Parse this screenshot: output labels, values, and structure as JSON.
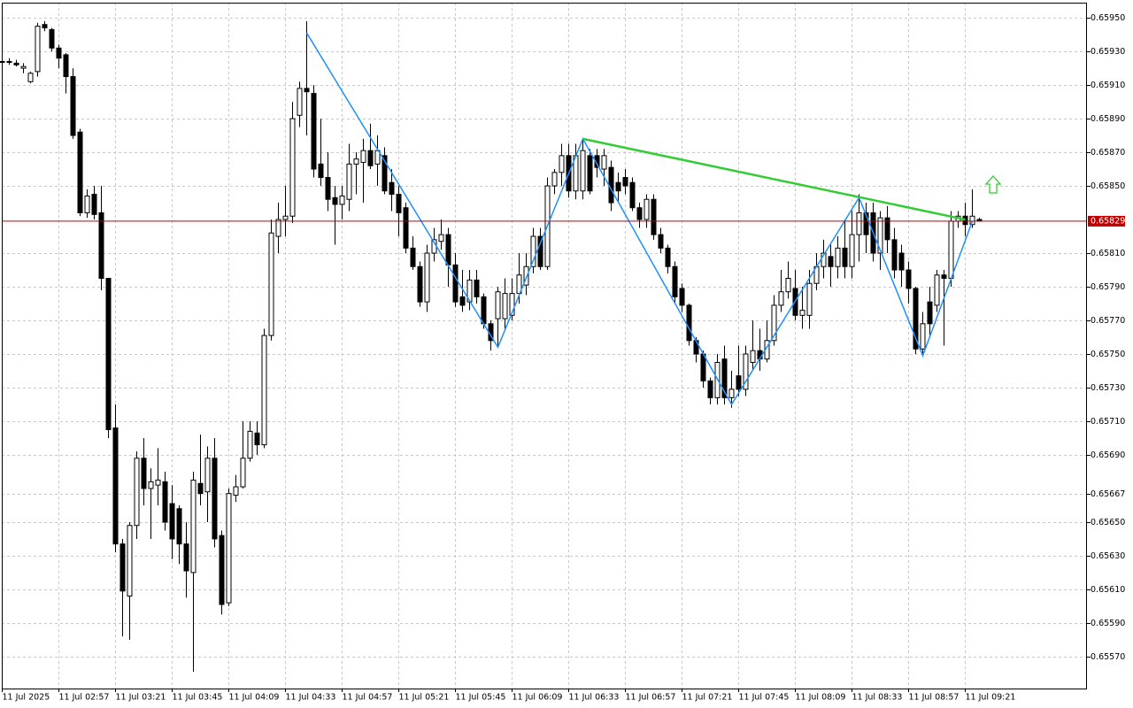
{
  "chart_data": {
    "type": "candlestick",
    "categories": [
      "11 Jul 2025",
      null,
      null,
      null,
      null,
      null,
      null,
      null,
      "11 Jul 02:57",
      null,
      null,
      null,
      null,
      null,
      null,
      null,
      "11 Jul 03:21",
      null,
      null,
      null,
      null,
      null,
      null,
      null,
      "11 Jul 03:45",
      null,
      null,
      null,
      null,
      null,
      null,
      null,
      "11 Jul 04:09",
      null,
      null,
      null,
      null,
      null,
      null,
      null,
      "11 Jul 04:33",
      null,
      null,
      null,
      null,
      null,
      null,
      null,
      "11 Jul 04:57",
      null,
      null,
      null,
      null,
      null,
      null,
      null,
      "11 Jul 05:21",
      null,
      null,
      null,
      null,
      null,
      null,
      null,
      "11 Jul 05:45",
      null,
      null,
      null,
      null,
      null,
      null,
      null,
      "11 Jul 06:09",
      null,
      null,
      null,
      null,
      null,
      null,
      null,
      "11 Jul 06:33",
      null,
      null,
      null,
      null,
      null,
      null,
      null,
      "11 Jul 06:57",
      null,
      null,
      null,
      null,
      null,
      null,
      null,
      "11 Jul 07:21",
      null,
      null,
      null,
      null,
      null,
      null,
      null,
      "11 Jul 07:45",
      null,
      null,
      null,
      null,
      null,
      null,
      null,
      "11 Jul 08:09",
      null,
      null,
      null,
      null,
      null,
      null,
      null,
      "11 Jul 08:33",
      null,
      null,
      null,
      null,
      null,
      null,
      null,
      "11 Jul 08:57",
      null,
      null,
      null,
      null,
      null,
      null,
      null,
      "11 Jul 09:21",
      null,
      null
    ],
    "open": [
      0.65924,
      0.65924,
      0.65923,
      0.6592,
      0.65912,
      0.65918,
      0.65946,
      0.65943,
      0.65932,
      0.65928,
      0.65915,
      0.65882,
      0.65834,
      0.65845,
      0.65834,
      0.65795,
      0.65706,
      0.65637,
      0.65606,
      0.65648,
      0.65688,
      0.6567,
      0.65672,
      0.65674,
      0.65661,
      0.65658,
      0.65637,
      0.6562,
      0.65673,
      0.65668,
      0.65688,
      0.65642,
      0.65602,
      0.65666,
      0.65671,
      0.65688,
      0.65703,
      0.65696,
      0.65761,
      0.6582,
      0.6583,
      0.65832,
      0.65892,
      0.65908,
      0.65905,
      0.65863,
      0.65855,
      0.65843,
      0.65839,
      0.65842,
      0.65863,
      0.65864,
      0.65871,
      0.65863,
      0.65868,
      0.65852,
      0.65845,
      0.65837,
      0.65813,
      0.65802,
      0.65781,
      0.6581,
      0.65817,
      0.65821,
      0.65803,
      0.65784,
      0.65781,
      0.65794,
      0.65784,
      0.65768,
      0.65771,
      0.65771,
      0.65773,
      0.65786,
      0.65791,
      0.65802,
      0.6582,
      0.65802,
      0.6585,
      0.65858,
      0.65868,
      0.65847,
      0.65847,
      0.65868,
      0.65868,
      0.6586,
      0.65861,
      0.65852,
      0.65855,
      0.65852,
      0.65837,
      0.6583,
      0.65842,
      0.65821,
      0.65813,
      0.65802,
      0.65789,
      0.65779,
      0.65758,
      0.6575,
      0.65734,
      0.65724,
      0.65747,
      0.65724,
      0.65737,
      0.65729,
      0.65745,
      0.65752,
      0.65747,
      0.65758,
      0.65779,
      0.65787,
      0.65789,
      0.65773,
      0.65773,
      0.65792,
      0.65802,
      0.65808,
      0.65802,
      0.65813,
      0.65802,
      0.65821,
      0.65834,
      0.65834,
      0.6581,
      0.65831,
      0.65818,
      0.6581,
      0.658,
      0.65789,
      0.65753,
      0.65781,
      0.65779,
      0.65797,
      0.65795,
      0.65829,
      0.65832,
      0.65827,
      0.6583
    ],
    "high": [
      0.65926,
      0.65926,
      0.65925,
      0.65923,
      0.65918,
      0.65947,
      0.65948,
      0.65944,
      0.65934,
      0.65929,
      0.6592,
      0.65884,
      0.65848,
      0.6585,
      0.6585,
      0.65795,
      0.6572,
      0.6564,
      0.6565,
      0.65692,
      0.657,
      0.65682,
      0.65694,
      0.6568,
      0.65672,
      0.6566,
      0.6565,
      0.6568,
      0.65702,
      0.65695,
      0.657,
      0.65645,
      0.6567,
      0.65678,
      0.6571,
      0.6571,
      0.6571,
      0.65765,
      0.6583,
      0.6584,
      0.6585,
      0.659,
      0.65912,
      0.65948,
      0.6591,
      0.6589,
      0.6587,
      0.6585,
      0.6585,
      0.65875,
      0.6587,
      0.65878,
      0.65887,
      0.6588,
      0.65873,
      0.6586,
      0.6585,
      0.6584,
      0.6582,
      0.65805,
      0.65815,
      0.65825,
      0.6583,
      0.65825,
      0.6581,
      0.658,
      0.658,
      0.658,
      0.65786,
      0.6577,
      0.6579,
      0.65795,
      0.65795,
      0.6581,
      0.6581,
      0.65825,
      0.65825,
      0.65855,
      0.6586,
      0.65875,
      0.65875,
      0.65875,
      0.65878,
      0.65872,
      0.65872,
      0.65872,
      0.65865,
      0.65858,
      0.6586,
      0.65855,
      0.6584,
      0.65845,
      0.65845,
      0.65825,
      0.65815,
      0.65805,
      0.65792,
      0.6578,
      0.6576,
      0.65752,
      0.65736,
      0.6575,
      0.65755,
      0.6574,
      0.65755,
      0.65755,
      0.6577,
      0.65765,
      0.6577,
      0.65785,
      0.658,
      0.65805,
      0.658,
      0.6579,
      0.658,
      0.6581,
      0.65818,
      0.65815,
      0.6582,
      0.6583,
      0.65835,
      0.65845,
      0.6584,
      0.6584,
      0.65835,
      0.65838,
      0.65825,
      0.65815,
      0.65805,
      0.6579,
      0.65775,
      0.6579,
      0.658,
      0.658,
      0.65835,
      0.65835,
      0.6584,
      0.65848,
      0.65831
    ],
    "low": [
      0.65922,
      0.65922,
      0.65921,
      0.65917,
      0.65911,
      0.65915,
      0.65942,
      0.6593,
      0.6592,
      0.65905,
      0.65878,
      0.65832,
      0.65831,
      0.6583,
      0.65788,
      0.657,
      0.65632,
      0.65582,
      0.6558,
      0.6564,
      0.6566,
      0.6564,
      0.6566,
      0.65645,
      0.65628,
      0.65625,
      0.65605,
      0.65561,
      0.6566,
      0.6565,
      0.65635,
      0.65595,
      0.656,
      0.65662,
      0.6567,
      0.65686,
      0.6569,
      0.65694,
      0.65758,
      0.6581,
      0.6582,
      0.65828,
      0.65885,
      0.6588,
      0.65855,
      0.6585,
      0.65835,
      0.65815,
      0.6583,
      0.65835,
      0.65845,
      0.6584,
      0.6586,
      0.6585,
      0.65845,
      0.65835,
      0.6582,
      0.6581,
      0.658,
      0.65778,
      0.65775,
      0.65805,
      0.65812,
      0.6579,
      0.65778,
      0.65775,
      0.65776,
      0.6578,
      0.65765,
      0.65752,
      0.65755,
      0.65765,
      0.6577,
      0.6578,
      0.65785,
      0.65798,
      0.658,
      0.658,
      0.65845,
      0.6585,
      0.65843,
      0.65842,
      0.65842,
      0.65845,
      0.65855,
      0.6585,
      0.65835,
      0.6584,
      0.65845,
      0.65835,
      0.65825,
      0.65825,
      0.65818,
      0.6581,
      0.65798,
      0.6578,
      0.65775,
      0.65755,
      0.65745,
      0.6573,
      0.6572,
      0.6572,
      0.6572,
      0.65718,
      0.65725,
      0.65725,
      0.6574,
      0.6574,
      0.65745,
      0.65755,
      0.65775,
      0.65783,
      0.6577,
      0.65765,
      0.65765,
      0.65788,
      0.65795,
      0.6579,
      0.65795,
      0.65795,
      0.65795,
      0.65805,
      0.6581,
      0.65805,
      0.658,
      0.6581,
      0.65795,
      0.6579,
      0.6578,
      0.6575,
      0.6575,
      0.6576,
      0.65775,
      0.65755,
      0.6579,
      0.65825,
      0.6582,
      0.65825,
      0.65829
    ],
    "close": [
      0.65924,
      0.65924,
      0.65922,
      0.65921,
      0.65917,
      0.65945,
      0.65944,
      0.65932,
      0.65926,
      0.65915,
      0.6588,
      0.65834,
      0.65844,
      0.65833,
      0.65795,
      0.65705,
      0.65637,
      0.65609,
      0.65648,
      0.65688,
      0.6567,
      0.65674,
      0.65675,
      0.6565,
      0.6564,
      0.65637,
      0.65621,
      0.65675,
      0.65667,
      0.65688,
      0.6564,
      0.65601,
      0.65667,
      0.65671,
      0.65688,
      0.65704,
      0.65696,
      0.65761,
      0.65822,
      0.6583,
      0.65832,
      0.6589,
      0.65908,
      0.65906,
      0.6586,
      0.65855,
      0.65842,
      0.65839,
      0.65844,
      0.65863,
      0.65866,
      0.65871,
      0.65862,
      0.65871,
      0.65847,
      0.65845,
      0.65834,
      0.65813,
      0.65802,
      0.65781,
      0.6581,
      0.65818,
      0.65821,
      0.65803,
      0.65781,
      0.65779,
      0.65794,
      0.65784,
      0.65768,
      0.65758,
      0.65787,
      0.65786,
      0.65786,
      0.65797,
      0.65802,
      0.6582,
      0.65802,
      0.6585,
      0.65858,
      0.65868,
      0.65847,
      0.65868,
      0.65871,
      0.65847,
      0.65861,
      0.65868,
      0.6584,
      0.65847,
      0.6585,
      0.65837,
      0.6583,
      0.65842,
      0.65821,
      0.65813,
      0.65802,
      0.65784,
      0.65779,
      0.65758,
      0.6575,
      0.65734,
      0.65724,
      0.65745,
      0.65724,
      0.65729,
      0.65729,
      0.6575,
      0.65752,
      0.65747,
      0.65758,
      0.65779,
      0.65787,
      0.65795,
      0.65773,
      0.65776,
      0.65792,
      0.65802,
      0.6581,
      0.65802,
      0.65813,
      0.65802,
      0.65821,
      0.65834,
      0.65821,
      0.6581,
      0.65831,
      0.65818,
      0.658,
      0.658,
      0.65789,
      0.65753,
      0.65768,
      0.65768,
      0.65797,
      0.65795,
      0.65829,
      0.65832,
      0.65827,
      0.65832,
      0.65829
    ],
    "up_color": "#ffffff",
    "down_color": "#000000",
    "ylim": [
      0.65551,
      0.65959
    ],
    "yticks": [
      {
        "value": 0.6595,
        "label": "0.65950"
      },
      {
        "value": 0.6593,
        "label": "0.65930"
      },
      {
        "value": 0.6591,
        "label": "0.65910"
      },
      {
        "value": 0.6589,
        "label": "0.65890"
      },
      {
        "value": 0.6587,
        "label": "0.65870"
      },
      {
        "value": 0.6585,
        "label": "0.65850"
      },
      {
        "value": 0.6581,
        "label": "0.65810"
      },
      {
        "value": 0.6579,
        "label": "0.65790"
      },
      {
        "value": 0.6577,
        "label": "0.65770"
      },
      {
        "value": 0.6575,
        "label": "0.65750"
      },
      {
        "value": 0.6573,
        "label": "0.65730"
      },
      {
        "value": 0.6571,
        "label": "0.65710"
      },
      {
        "value": 0.6569,
        "label": "0.65690"
      },
      0.65667,
      {
        "value": 0.6565,
        "label": "0.65650"
      },
      {
        "value": 0.6563,
        "label": "0.65630"
      },
      {
        "value": 0.6561,
        "label": "0.65610"
      },
      {
        "value": 0.6559,
        "label": "0.65590"
      },
      {
        "value": 0.6557,
        "label": "0.65570"
      }
    ],
    "grid": true,
    "zigzag": {
      "color": "#1e90ff",
      "x": [
        43,
        70,
        82,
        103,
        121,
        130,
        137
      ],
      "values": [
        0.65941,
        0.65754,
        0.65878,
        0.6572,
        0.65843,
        0.65749,
        0.65829
      ]
    },
    "trendline": {
      "color": "#32cd32",
      "x": [
        82,
        136
      ],
      "values": [
        0.65878,
        0.6583
      ]
    },
    "current_price": {
      "value": 0.65829,
      "color": "#c00000"
    }
  }
}
